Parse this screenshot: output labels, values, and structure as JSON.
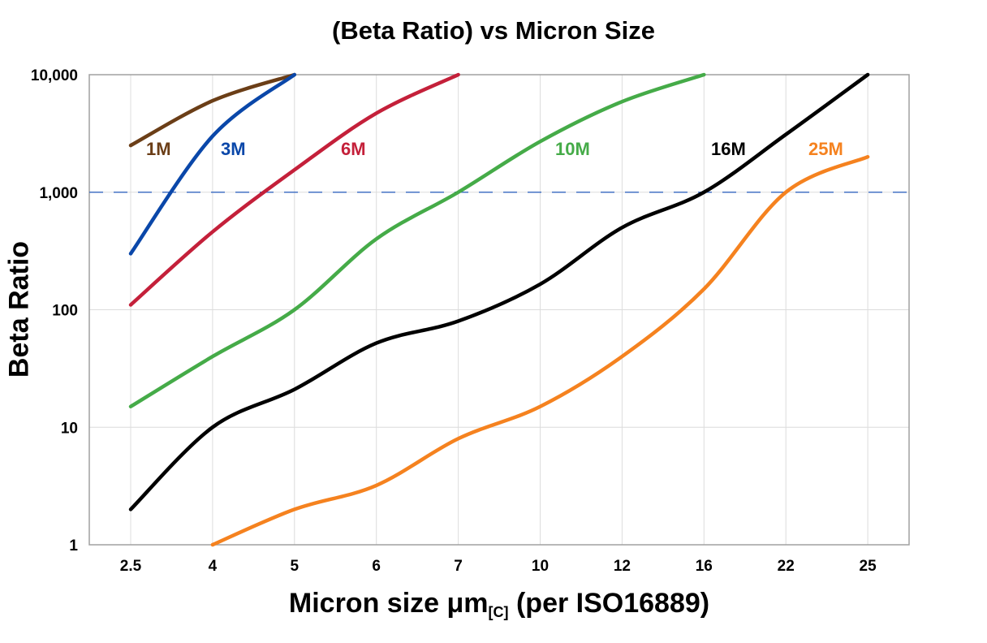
{
  "chart_data": {
    "type": "line",
    "title": "(Beta Ratio) vs Micron Size",
    "xlabel": {
      "main": "Micron size μm",
      "subscript": "[C]",
      "suffix": " (per ISO16889)"
    },
    "ylabel": "Beta Ratio",
    "y_scale": "log",
    "ylim": [
      1,
      10000
    ],
    "y_ticks": [
      1,
      10,
      100,
      1000,
      10000
    ],
    "y_tick_labels": [
      "1",
      "10",
      "100",
      "1,000",
      "10,000"
    ],
    "categories": [
      "2.5",
      "4",
      "5",
      "6",
      "7",
      "10",
      "12",
      "16",
      "22",
      "25"
    ],
    "grid": true,
    "legend": "inline labels near curves",
    "reference_line": {
      "y": 1000,
      "style": "dashed",
      "color": "#4472c4"
    },
    "series": [
      {
        "name": "1M",
        "color": "#6b3e17",
        "values": [
          2500,
          6000,
          10000,
          null,
          null,
          null,
          null,
          null,
          null,
          null
        ]
      },
      {
        "name": "3M",
        "color": "#0a47a9",
        "values": [
          300,
          3000,
          10000,
          null,
          null,
          null,
          null,
          null,
          null,
          null
        ]
      },
      {
        "name": "6M",
        "color": "#c4203a",
        "values": [
          110,
          460,
          1550,
          4700,
          10000,
          null,
          null,
          null,
          null,
          null
        ]
      },
      {
        "name": "10M",
        "color": "#45ab48",
        "values": [
          15,
          40,
          100,
          400,
          1000,
          2700,
          5900,
          10000,
          null,
          null
        ]
      },
      {
        "name": "16M",
        "color": "#000000",
        "values": [
          2,
          10,
          21,
          52,
          80,
          165,
          500,
          1000,
          3100,
          10000
        ]
      },
      {
        "name": "25M",
        "color": "#f5821f",
        "values": [
          null,
          1,
          2,
          3.2,
          8,
          15,
          40,
          150,
          1000,
          2000
        ]
      }
    ]
  }
}
